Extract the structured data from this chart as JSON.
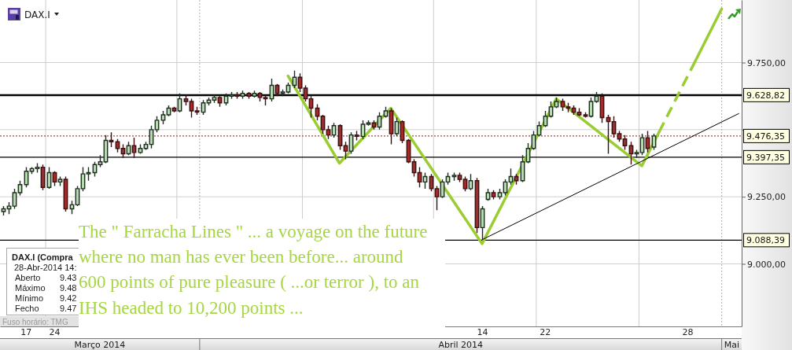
{
  "chart_data": {
    "type": "candlestick",
    "title": "DAX.I",
    "categories": [
      null,
      null,
      null,
      null,
      "17",
      null,
      null,
      null,
      null,
      "24",
      null,
      null,
      null,
      null,
      null,
      null,
      null,
      null,
      null,
      null,
      null,
      null,
      null,
      null,
      null,
      null,
      null,
      null,
      null,
      null,
      null,
      null,
      null,
      null,
      null,
      null,
      null,
      null,
      null,
      null,
      null,
      null,
      null,
      null,
      null,
      null,
      null,
      null,
      null,
      null,
      null,
      null,
      null,
      null,
      null,
      null,
      null,
      null,
      null,
      null,
      null,
      null,
      null,
      null,
      null,
      null,
      null,
      null,
      null,
      null,
      null,
      null,
      null,
      null,
      null,
      null,
      null,
      null,
      null,
      null,
      null,
      null,
      null,
      null,
      "14",
      null,
      null,
      null,
      null,
      null,
      null,
      null,
      null,
      null,
      null,
      "22",
      null,
      null,
      null,
      null,
      null,
      null,
      null,
      null,
      null,
      null,
      null,
      null,
      null,
      null,
      null,
      null,
      null,
      null,
      null,
      null,
      null,
      null,
      null,
      null,
      "28",
      null,
      null,
      null,
      null,
      null,
      null,
      null,
      null,
      null
    ],
    "ohlc": [
      [
        9195,
        9215,
        9180,
        9205
      ],
      [
        9205,
        9230,
        9185,
        9215
      ],
      [
        9215,
        9280,
        9205,
        9265
      ],
      [
        9265,
        9310,
        9255,
        9295
      ],
      [
        9295,
        9360,
        9285,
        9345
      ],
      [
        9345,
        9360,
        9335,
        9355
      ],
      [
        9355,
        9375,
        9340,
        9360
      ],
      [
        9360,
        9370,
        9275,
        9285
      ],
      [
        9285,
        9360,
        9280,
        9340
      ],
      [
        9340,
        9345,
        9290,
        9305
      ],
      [
        9305,
        9325,
        9290,
        9315
      ],
      [
        9315,
        9325,
        9195,
        9205
      ],
      [
        9205,
        9235,
        9185,
        9220
      ],
      [
        9220,
        9290,
        9215,
        9280
      ],
      [
        9280,
        9360,
        9270,
        9335
      ],
      [
        9335,
        9360,
        9310,
        9340
      ],
      [
        9340,
        9380,
        9325,
        9370
      ],
      [
        9370,
        9405,
        9360,
        9380
      ],
      [
        9380,
        9480,
        9375,
        9460
      ],
      [
        9460,
        9490,
        9435,
        9455
      ],
      [
        9455,
        9465,
        9415,
        9430
      ],
      [
        9430,
        9445,
        9395,
        9410
      ],
      [
        9410,
        9455,
        9405,
        9440
      ],
      [
        9440,
        9470,
        9395,
        9415
      ],
      [
        9415,
        9445,
        9410,
        9430
      ],
      [
        9430,
        9455,
        9425,
        9445
      ],
      [
        9445,
        9515,
        9430,
        9500
      ],
      [
        9500,
        9550,
        9490,
        9535
      ],
      [
        9535,
        9570,
        9520,
        9555
      ],
      [
        9555,
        9590,
        9550,
        9580
      ],
      [
        9580,
        9585,
        9565,
        9570
      ],
      [
        9570,
        9635,
        9565,
        9615
      ],
      [
        9615,
        9630,
        9590,
        9605
      ],
      [
        9605,
        9615,
        9545,
        9570
      ],
      [
        9570,
        9585,
        9555,
        9565
      ],
      [
        9565,
        9610,
        9555,
        9600
      ],
      [
        9600,
        9620,
        9590,
        9610
      ],
      [
        9610,
        9630,
        9600,
        9620
      ],
      [
        9620,
        9625,
        9585,
        9600
      ],
      [
        9600,
        9635,
        9590,
        9625
      ],
      [
        9625,
        9640,
        9615,
        9630
      ],
      [
        9630,
        9640,
        9615,
        9625
      ],
      [
        9625,
        9645,
        9615,
        9635
      ],
      [
        9635,
        9640,
        9615,
        9625
      ],
      [
        9625,
        9645,
        9620,
        9635
      ],
      [
        9635,
        9640,
        9605,
        9620
      ],
      [
        9620,
        9630,
        9590,
        9615
      ],
      [
        9615,
        9690,
        9605,
        9665
      ],
      [
        9665,
        9670,
        9625,
        9635
      ],
      [
        9635,
        9650,
        9625,
        9640
      ],
      [
        9640,
        9675,
        9635,
        9665
      ],
      [
        9665,
        9720,
        9655,
        9695
      ],
      [
        9695,
        9710,
        9640,
        9655
      ],
      [
        9655,
        9665,
        9605,
        9615
      ],
      [
        9615,
        9625,
        9545,
        9580
      ],
      [
        9580,
        9595,
        9535,
        9550
      ],
      [
        9550,
        9555,
        9485,
        9500
      ],
      [
        9500,
        9515,
        9465,
        9480
      ],
      [
        9480,
        9525,
        9470,
        9515
      ],
      [
        9515,
        9520,
        9425,
        9440
      ],
      [
        9440,
        9455,
        9390,
        9420
      ],
      [
        9420,
        9490,
        9410,
        9480
      ],
      [
        9480,
        9495,
        9460,
        9475
      ],
      [
        9475,
        9535,
        9465,
        9520
      ],
      [
        9520,
        9535,
        9515,
        9525
      ],
      [
        9525,
        9535,
        9500,
        9510
      ],
      [
        9510,
        9565,
        9500,
        9550
      ],
      [
        9550,
        9585,
        9545,
        9570
      ],
      [
        9570,
        9580,
        9445,
        9485
      ],
      [
        9485,
        9545,
        9475,
        9530
      ],
      [
        9530,
        9535,
        9450,
        9460
      ],
      [
        9460,
        9465,
        9375,
        9380
      ],
      [
        9380,
        9390,
        9325,
        9340
      ],
      [
        9340,
        9360,
        9285,
        9305
      ],
      [
        9305,
        9340,
        9280,
        9325
      ],
      [
        9325,
        9335,
        9270,
        9280
      ],
      [
        9280,
        9290,
        9200,
        9250
      ],
      [
        9250,
        9315,
        9245,
        9305
      ],
      [
        9305,
        9340,
        9295,
        9325
      ],
      [
        9325,
        9340,
        9310,
        9330
      ],
      [
        9330,
        9340,
        9305,
        9315
      ],
      [
        9315,
        9325,
        9270,
        9280
      ],
      [
        9280,
        9335,
        9275,
        9310
      ],
      [
        9310,
        9320,
        9115,
        9135
      ],
      [
        9135,
        9215,
        9090,
        9205
      ],
      [
        9240,
        9280,
        9235,
        9265
      ],
      [
        9265,
        9275,
        9240,
        9250
      ],
      [
        9250,
        9280,
        9240,
        9265
      ],
      [
        9265,
        9315,
        9255,
        9305
      ],
      [
        9305,
        9355,
        9295,
        9325
      ],
      [
        9325,
        9335,
        9295,
        9310
      ],
      [
        9310,
        9405,
        9305,
        9380
      ],
      [
        9380,
        9450,
        9375,
        9430
      ],
      [
        9430,
        9495,
        9425,
        9480
      ],
      [
        9480,
        9530,
        9475,
        9515
      ],
      [
        9515,
        9570,
        9510,
        9550
      ],
      [
        9550,
        9605,
        9545,
        9585
      ],
      [
        9585,
        9620,
        9580,
        9605
      ],
      [
        9605,
        9615,
        9570,
        9585
      ],
      [
        9585,
        9600,
        9565,
        9580
      ],
      [
        9580,
        9590,
        9555,
        9565
      ],
      [
        9565,
        9580,
        9550,
        9555
      ],
      [
        9555,
        9565,
        9545,
        9550
      ],
      [
        9550,
        9620,
        9545,
        9605
      ],
      [
        9605,
        9640,
        9600,
        9625
      ],
      [
        9625,
        9635,
        9525,
        9545
      ],
      [
        9545,
        9555,
        9410,
        9530
      ],
      [
        9530,
        9550,
        9470,
        9485
      ],
      [
        9485,
        9495,
        9455,
        9465
      ],
      [
        9465,
        9480,
        9425,
        9440
      ],
      [
        9440,
        9455,
        9370,
        9410
      ],
      [
        9410,
        9425,
        9395,
        9415
      ],
      [
        9415,
        9485,
        9405,
        9470
      ],
      [
        9470,
        9495,
        9415,
        9430
      ],
      [
        9435,
        9485,
        9425,
        9476.35
      ],
      null,
      null,
      null,
      null,
      null,
      null,
      null,
      null,
      null,
      null,
      null,
      null,
      null,
      null,
      null
    ],
    "series": [
      {
        "type": "line",
        "color": "#9acd32",
        "values": [
          null,
          null,
          null,
          null,
          null,
          null,
          null,
          null,
          null,
          null,
          null,
          null,
          null,
          null,
          null,
          null,
          null,
          null,
          null,
          null,
          null,
          null,
          null,
          null,
          null,
          null,
          null,
          null,
          null,
          null,
          null,
          null,
          null,
          null,
          null,
          null,
          null,
          null,
          null,
          null,
          null,
          null,
          null,
          null,
          null,
          null,
          null,
          null,
          null,
          null,
          9700,
          null,
          null,
          null,
          null,
          null,
          null,
          null,
          null,
          9375,
          null,
          null,
          null,
          null,
          null,
          null,
          null,
          null,
          9580,
          null,
          null,
          null,
          null,
          null,
          null,
          null,
          null,
          null,
          null,
          null,
          null,
          null,
          null,
          null,
          9075,
          null,
          null,
          null,
          null,
          null,
          null,
          null,
          null,
          null,
          null,
          null,
          null,
          9615,
          null,
          null,
          null,
          null,
          null,
          null,
          null,
          null,
          null,
          null,
          null,
          null,
          null,
          null,
          9365,
          null,
          null,
          9490,
          null,
          null,
          null,
          null,
          null,
          null,
          null,
          null,
          null,
          null,
          null,
          null,
          null,
          null
        ]
      },
      {
        "type": "line",
        "color": "#9acd32",
        "line_style": "dashed",
        "values": [
          null,
          null,
          null,
          null,
          null,
          null,
          null,
          null,
          null,
          null,
          null,
          null,
          null,
          null,
          null,
          null,
          null,
          null,
          null,
          null,
          null,
          null,
          null,
          null,
          null,
          null,
          null,
          null,
          null,
          null,
          null,
          null,
          null,
          null,
          null,
          null,
          null,
          null,
          null,
          null,
          null,
          null,
          null,
          null,
          null,
          null,
          null,
          null,
          null,
          null,
          null,
          null,
          null,
          null,
          null,
          null,
          null,
          null,
          null,
          null,
          null,
          null,
          null,
          null,
          null,
          null,
          null,
          null,
          null,
          null,
          null,
          null,
          null,
          null,
          null,
          null,
          null,
          null,
          null,
          null,
          null,
          null,
          null,
          null,
          null,
          null,
          null,
          null,
          null,
          null,
          null,
          null,
          null,
          null,
          null,
          null,
          null,
          null,
          null,
          null,
          null,
          null,
          null,
          null,
          null,
          null,
          null,
          null,
          null,
          null,
          null,
          null,
          null,
          null,
          null,
          9490,
          null,
          null,
          null,
          null,
          null,
          9740,
          null,
          null,
          null,
          null,
          null,
          null,
          null,
          null
        ]
      },
      {
        "type": "line",
        "color": "#9acd32",
        "values": [
          null,
          null,
          null,
          null,
          null,
          null,
          null,
          null,
          null,
          null,
          null,
          null,
          null,
          null,
          null,
          null,
          null,
          null,
          null,
          null,
          null,
          null,
          null,
          null,
          null,
          null,
          null,
          null,
          null,
          null,
          null,
          null,
          null,
          null,
          null,
          null,
          null,
          null,
          null,
          null,
          null,
          null,
          null,
          null,
          null,
          null,
          null,
          null,
          null,
          null,
          null,
          null,
          null,
          null,
          null,
          null,
          null,
          null,
          null,
          null,
          null,
          null,
          null,
          null,
          null,
          null,
          null,
          null,
          null,
          null,
          null,
          null,
          null,
          null,
          null,
          null,
          null,
          null,
          null,
          null,
          null,
          null,
          null,
          null,
          null,
          null,
          null,
          null,
          null,
          null,
          null,
          null,
          null,
          null,
          null,
          null,
          null,
          null,
          null,
          null,
          null,
          null,
          null,
          null,
          null,
          null,
          null,
          null,
          null,
          null,
          null,
          null,
          null,
          null,
          null,
          null,
          null,
          null,
          null,
          null,
          null,
          9740,
          null,
          null,
          null,
          null,
          9950,
          null,
          null,
          null
        ]
      },
      {
        "type": "line",
        "color": "#000000",
        "values": [
          null,
          null,
          null,
          null,
          null,
          null,
          null,
          null,
          null,
          null,
          null,
          null,
          null,
          null,
          null,
          null,
          null,
          null,
          null,
          null,
          null,
          null,
          null,
          null,
          null,
          null,
          null,
          null,
          null,
          null,
          null,
          null,
          null,
          null,
          null,
          null,
          null,
          null,
          null,
          null,
          null,
          null,
          null,
          null,
          null,
          null,
          null,
          null,
          null,
          null,
          null,
          null,
          null,
          null,
          null,
          null,
          null,
          null,
          null,
          null,
          null,
          null,
          null,
          null,
          null,
          null,
          null,
          null,
          null,
          null,
          null,
          null,
          null,
          null,
          null,
          null,
          null,
          null,
          null,
          null,
          null,
          null,
          null,
          null,
          9090,
          null,
          null,
          null,
          null,
          null,
          null,
          null,
          null,
          null,
          null,
          null,
          null,
          null,
          null,
          null,
          null,
          null,
          null,
          null,
          null,
          null,
          null,
          null,
          null,
          null,
          null,
          null,
          null,
          null,
          null,
          null,
          null,
          null,
          null,
          null,
          null,
          null,
          null,
          null,
          null,
          null,
          null,
          null,
          null,
          9560
        ]
      }
    ],
    "ylim": [
      8767,
      9983
    ],
    "yticks": [
      {
        "value": 9000,
        "label": "9.000,00"
      },
      {
        "value": 9250,
        "label": "9.250,00"
      },
      {
        "value": 9500,
        "label": null
      },
      {
        "value": 9750,
        "label": "9.750,00"
      }
    ],
    "grid": "y",
    "ref_lines": [
      {
        "axis": "y",
        "value": 9628.82,
        "label": "9.628,82",
        "color": "#000000"
      },
      {
        "axis": "y",
        "value": 9476.35,
        "label": "9.476,35",
        "color": "#a04848",
        "line_style": "dotted"
      },
      {
        "axis": "y",
        "value": 9397.35,
        "label": "9.397,35",
        "color": "#000000"
      },
      {
        "axis": "y",
        "value": 9088.39,
        "label": "9.088,39",
        "color": "#000000"
      }
    ],
    "annotations": [
      "The \" Farracha Lines \" ... a voyage on the future",
      "where no man has ever been before... around",
      "600 points of pure pleasure ( ...or terror ), to an",
      "IHS headed to 10,200 points ...",
      "DAX.I (Compra",
      "28-Abr-2014 14:",
      "Aberto",
      "9.43",
      "Máximo",
      "9.48",
      "Mínimo",
      "9.42",
      "Fecho",
      "9.47",
      "Fuso horário: TMG",
      "Março 2014",
      "Abril 2014",
      "Mai"
    ]
  }
}
